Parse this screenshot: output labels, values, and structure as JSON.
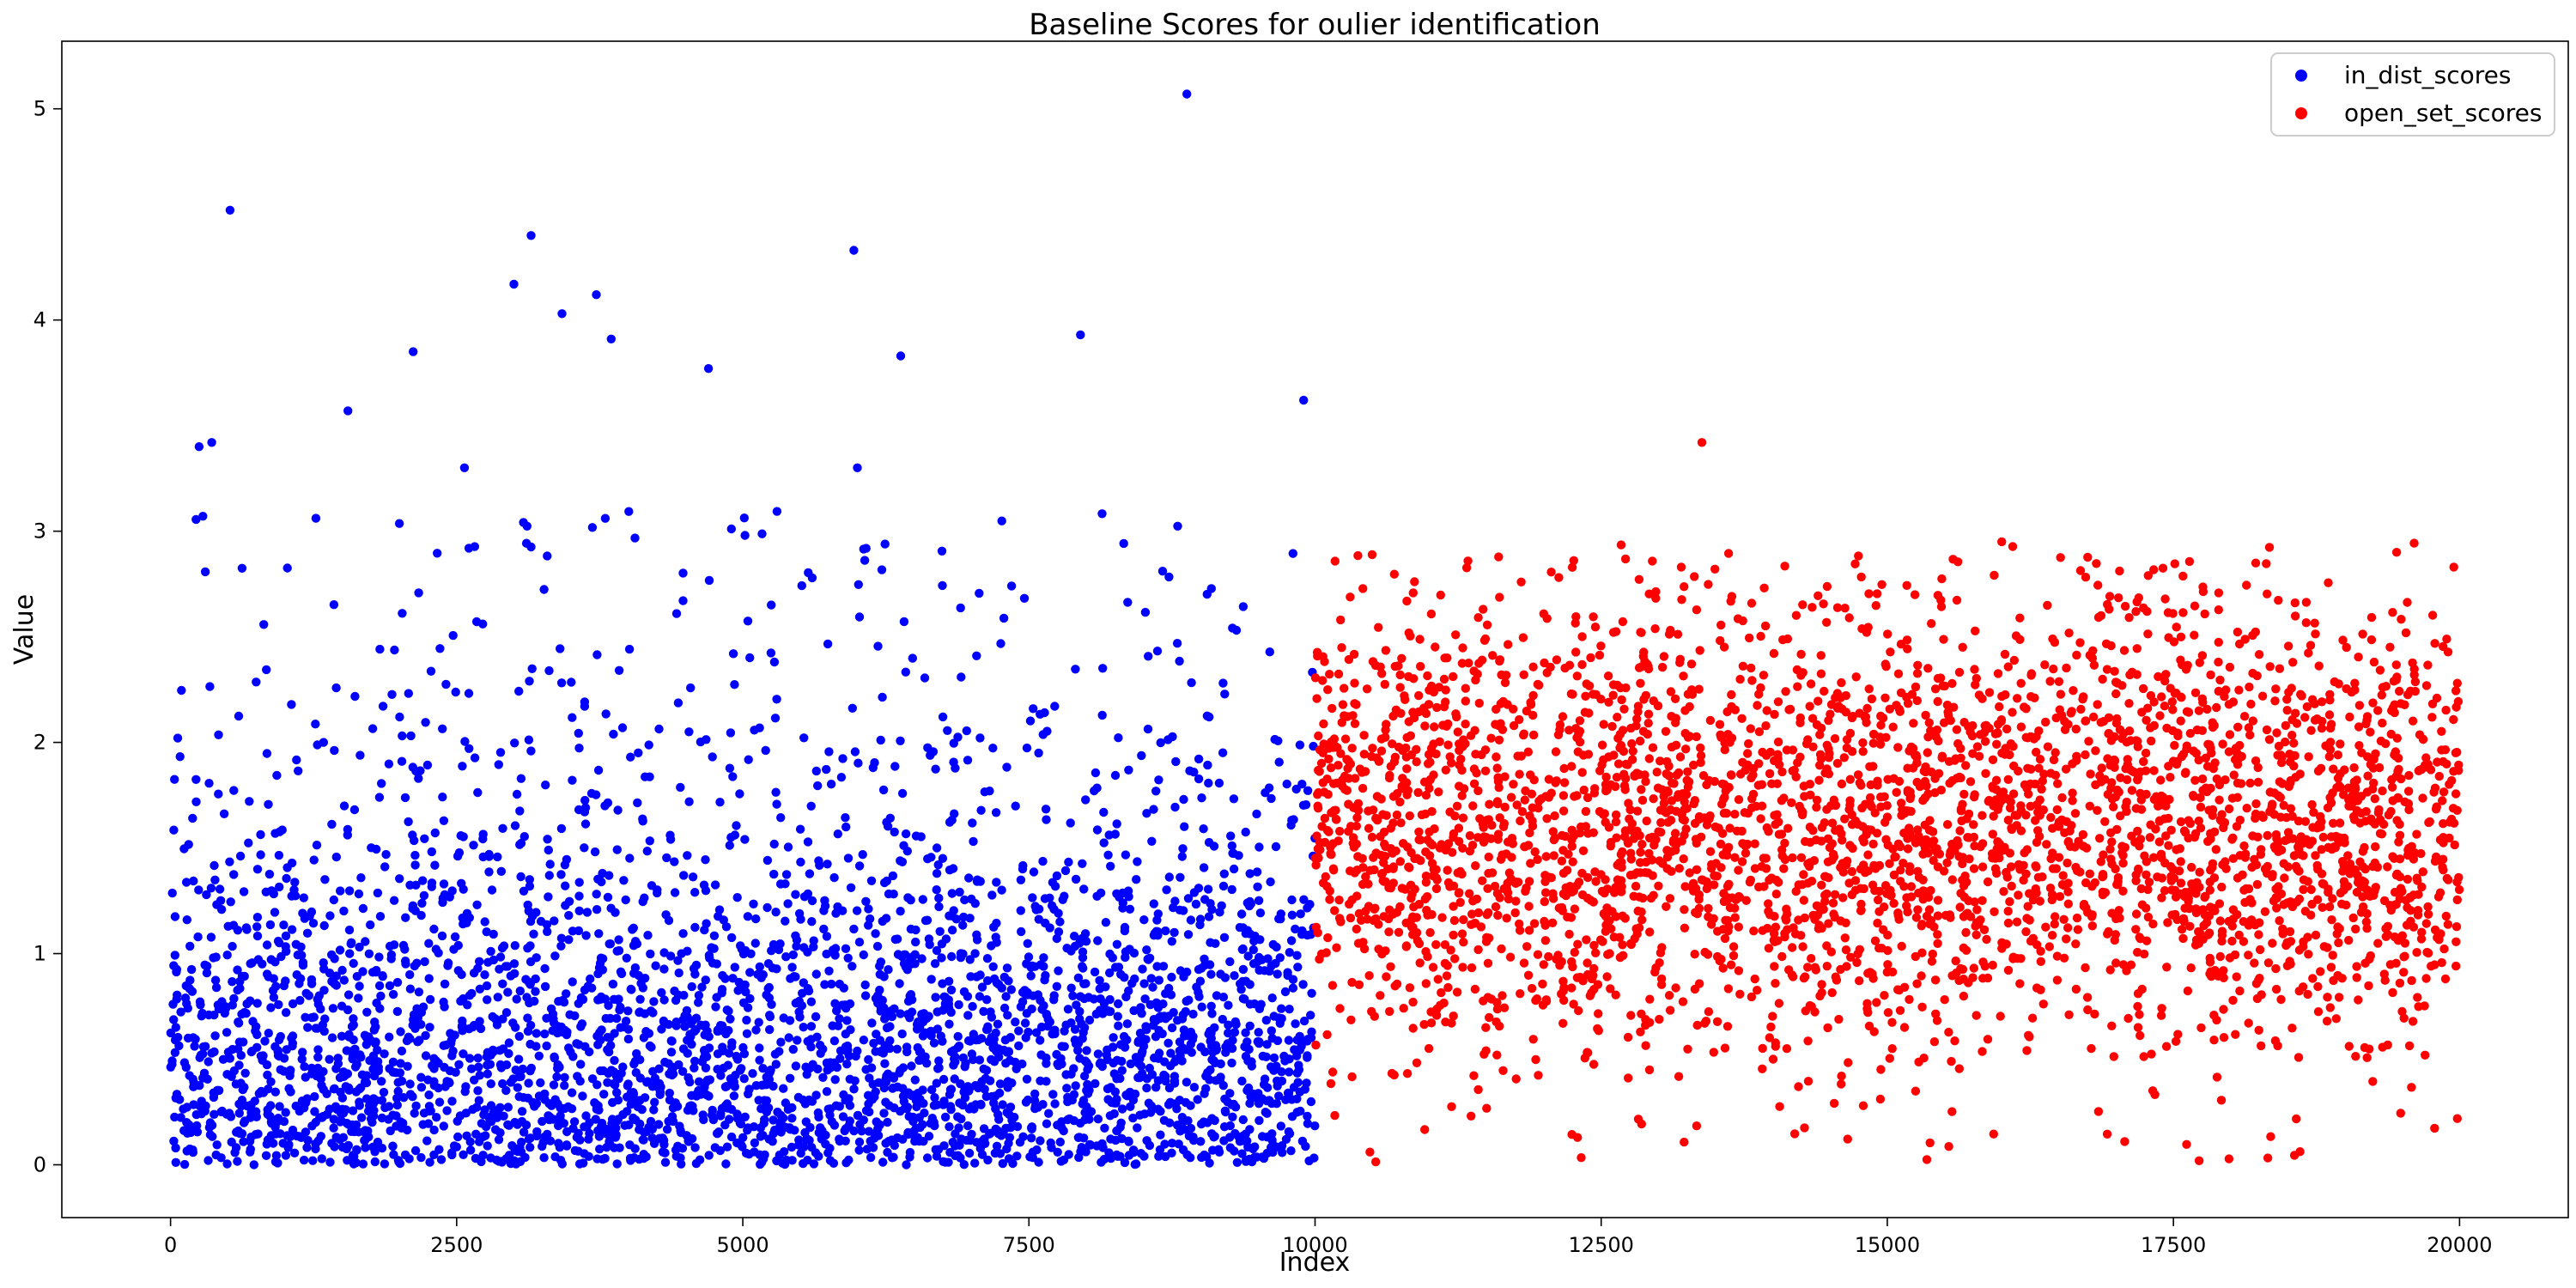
{
  "chart_data": {
    "type": "scatter",
    "title": "Baseline Scores for oulier identification",
    "xlabel": "Index",
    "ylabel": "Value",
    "xlim": [
      -950,
      20950
    ],
    "ylim": [
      -0.25,
      5.32
    ],
    "xticks": [
      0,
      2500,
      5000,
      7500,
      10000,
      12500,
      15000,
      17500,
      20000
    ],
    "yticks": [
      0,
      1,
      2,
      3,
      4,
      5
    ],
    "grid": false,
    "legend_position": "top-right",
    "series": [
      {
        "name": "in_dist_scores",
        "color": "#0000ff",
        "x_range": [
          0,
          9999
        ],
        "count": 10000,
        "bulk_range": [
          0,
          2.5
        ],
        "notable_points": [
          {
            "x": 520,
            "y": 4.52
          },
          {
            "x": 3000,
            "y": 4.17
          },
          {
            "x": 3150,
            "y": 4.4
          },
          {
            "x": 3420,
            "y": 4.03
          },
          {
            "x": 3720,
            "y": 4.12
          },
          {
            "x": 3850,
            "y": 3.91
          },
          {
            "x": 4700,
            "y": 3.77
          },
          {
            "x": 5970,
            "y": 4.33
          },
          {
            "x": 7950,
            "y": 3.93
          },
          {
            "x": 8880,
            "y": 5.07
          },
          {
            "x": 9900,
            "y": 3.62
          },
          {
            "x": 250,
            "y": 3.4
          },
          {
            "x": 360,
            "y": 3.42
          },
          {
            "x": 1550,
            "y": 3.57
          },
          {
            "x": 2120,
            "y": 3.85
          },
          {
            "x": 6380,
            "y": 3.83
          }
        ]
      },
      {
        "name": "open_set_scores",
        "color": "#ff0000",
        "x_range": [
          10000,
          19999
        ],
        "count": 10000,
        "bulk_range": [
          0,
          2.9
        ],
        "notable_points": [
          {
            "x": 13380,
            "y": 3.42
          },
          {
            "x": 16000,
            "y": 2.95
          },
          {
            "x": 19450,
            "y": 2.9
          },
          {
            "x": 13200,
            "y": 2.83
          },
          {
            "x": 19950,
            "y": 2.83
          }
        ]
      }
    ]
  }
}
